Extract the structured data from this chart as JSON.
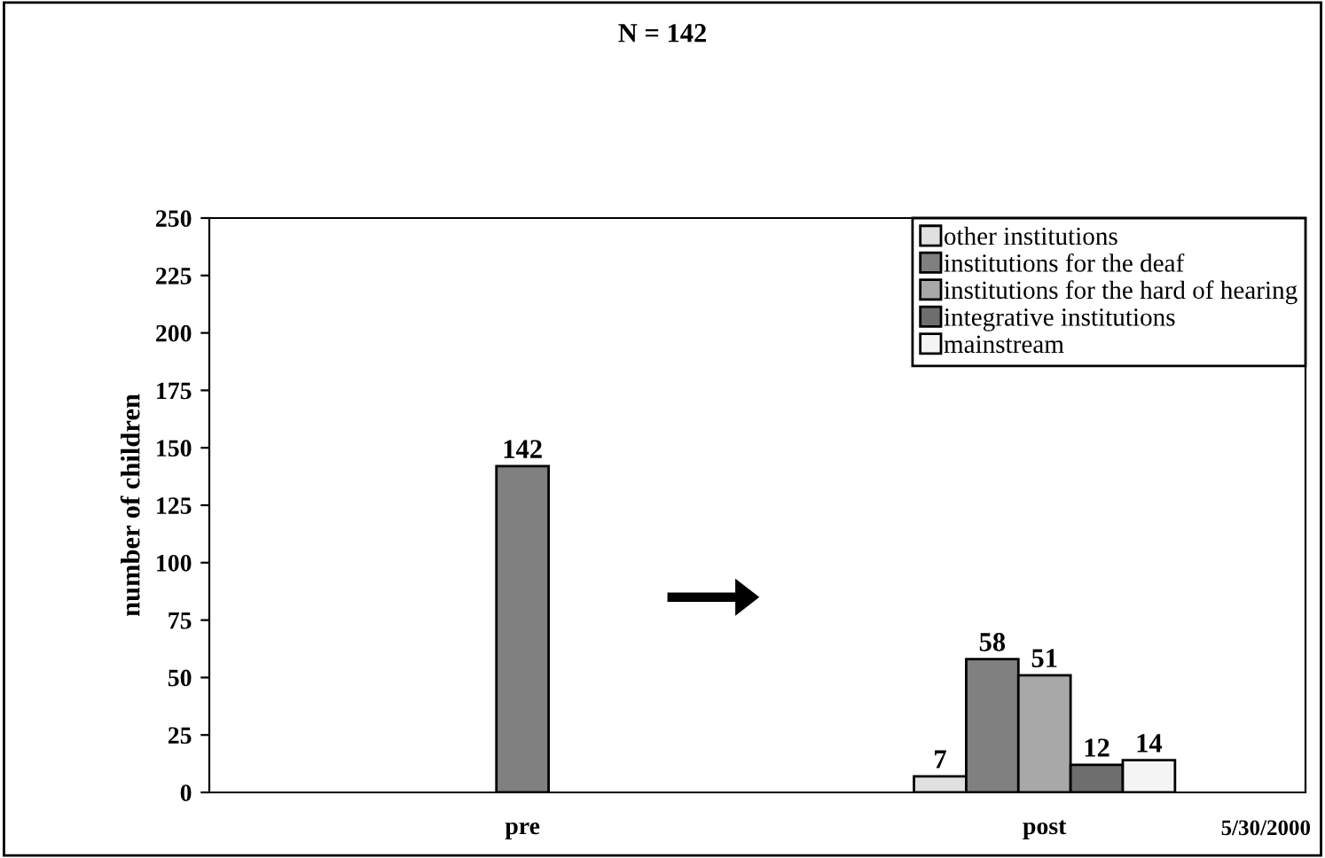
{
  "chart_data": {
    "type": "bar",
    "title": "N = 142",
    "ylabel": "number of children",
    "categories": [
      "pre",
      "post"
    ],
    "series": [
      {
        "name": "other institutions",
        "color": "#e0e0e0",
        "values": [
          null,
          7
        ]
      },
      {
        "name": "institutions for the deaf",
        "color": "#808080",
        "values": [
          null,
          58
        ]
      },
      {
        "name": "institutions for the hard of hearing",
        "color": "#a8a8a8",
        "values": [
          null,
          51
        ]
      },
      {
        "name": "integrative institutions",
        "color": "#6e6e6e",
        "values": [
          null,
          12
        ]
      },
      {
        "name": "mainstream",
        "color": "#f4f4f4",
        "values": [
          null,
          14
        ]
      },
      {
        "color": "#808080",
        "values": [
          142,
          null
        ]
      }
    ],
    "ylim": [
      0,
      250
    ],
    "yticks": [
      0,
      25,
      50,
      75,
      100,
      125,
      150,
      175,
      200,
      225,
      250
    ],
    "data_labels": true,
    "legend": "top right",
    "grid": false,
    "annotations": [
      "5/30/2000"
    ]
  }
}
